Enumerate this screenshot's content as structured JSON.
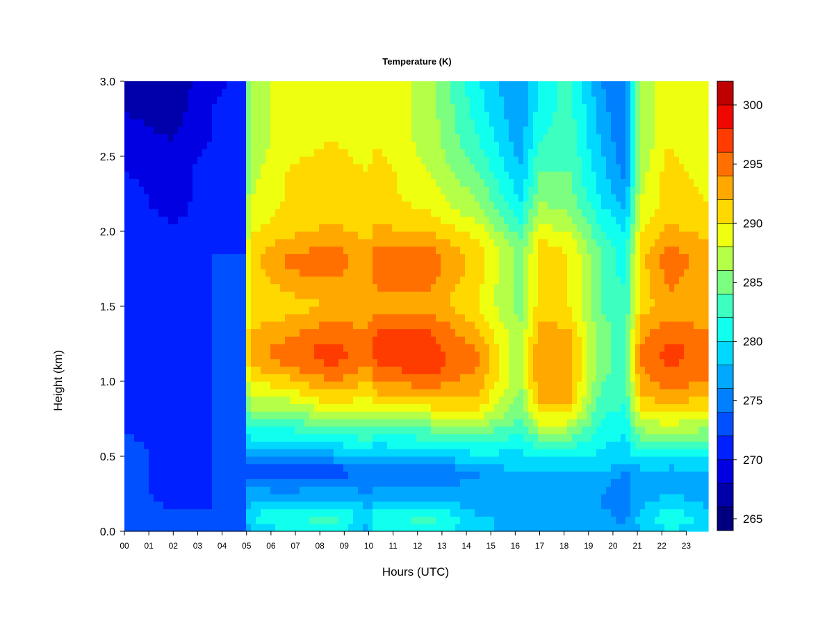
{
  "chart_data": {
    "type": "heatmap",
    "title": "Temperature (K)",
    "xlabel": "Hours (UTC)",
    "ylabel": "Height (km)",
    "x_tick_labels": [
      "00",
      "01",
      "02",
      "03",
      "04",
      "05",
      "06",
      "07",
      "08",
      "09",
      "10",
      "11",
      "12",
      "13",
      "14",
      "15",
      "16",
      "17",
      "18",
      "19",
      "20",
      "21",
      "22",
      "23"
    ],
    "x_range": [
      0,
      23.9
    ],
    "y_tick_labels": [
      "0.0",
      "0.5",
      "1.0",
      "1.5",
      "2.0",
      "2.5",
      "3.0"
    ],
    "y_range": [
      0,
      3.0
    ],
    "colorbar": {
      "range": [
        264,
        302
      ],
      "levels": [
        264,
        266,
        268,
        270,
        272,
        274,
        276,
        278,
        280,
        282,
        284,
        286,
        288,
        290,
        292,
        294,
        296,
        298,
        300,
        302
      ],
      "colors": [
        "#00007F",
        "#0000AA",
        "#0000E3",
        "#0020FF",
        "#0050FF",
        "#0080FF",
        "#00A8FF",
        "#00D8FF",
        "#10FFEE",
        "#3CFFC0",
        "#7CFF80",
        "#B4FF48",
        "#EEFF10",
        "#FFD800",
        "#FFA800",
        "#FF7000",
        "#FF3C00",
        "#F00800",
        "#BE0000",
        "#7F0000"
      ],
      "tick_labels": [
        "265",
        "270",
        "275",
        "280",
        "285",
        "290",
        "295",
        "300"
      ]
    },
    "height_levels_km": [
      0.0,
      0.05,
      0.1,
      0.15,
      0.25,
      0.35,
      0.4,
      0.45,
      0.55,
      0.65,
      0.75,
      0.85,
      1.0,
      1.1,
      1.2,
      1.35,
      1.5,
      1.6,
      1.75,
      1.85,
      1.95,
      2.05,
      2.2,
      2.4,
      2.6,
      2.8,
      3.0
    ],
    "profiles": [
      {
        "hour": 0.0,
        "temp_k": [
          274,
          274,
          274,
          273,
          273,
          273,
          273,
          273,
          273,
          272,
          272,
          272,
          272,
          272,
          272,
          272,
          272,
          272,
          271,
          271,
          271,
          271,
          271,
          270,
          269,
          268,
          268
        ]
      },
      {
        "hour": 2.0,
        "temp_k": [
          273,
          273,
          272,
          272,
          271,
          271,
          271,
          271,
          271,
          271,
          271,
          271,
          271,
          271,
          271,
          271,
          271,
          271,
          271,
          270,
          270,
          270,
          269,
          269,
          268,
          267,
          267
        ]
      },
      {
        "hour": 3.5,
        "temp_k": [
          273,
          273,
          272,
          272,
          272,
          272,
          272,
          272,
          272,
          272,
          272,
          272,
          272,
          272,
          272,
          272,
          272,
          272,
          272,
          272,
          271,
          271,
          271,
          271,
          270,
          270,
          269
        ]
      },
      {
        "hour": 4.9,
        "temp_k": [
          273,
          273,
          272,
          272,
          272,
          272,
          272,
          272,
          272,
          272,
          272,
          272,
          272,
          272,
          272,
          272,
          272,
          272,
          272,
          272,
          272,
          272,
          272,
          271,
          271,
          271,
          271
        ]
      },
      {
        "hour": 5.1,
        "temp_k": [
          278,
          279,
          280,
          279,
          277,
          275,
          273,
          275,
          279,
          281,
          284,
          287,
          290,
          292,
          293,
          292,
          290,
          290,
          291,
          291,
          290,
          289,
          288,
          287,
          286,
          286,
          286
        ]
      },
      {
        "hour": 6.5,
        "temp_k": [
          280,
          281,
          282,
          280,
          276,
          275,
          272,
          275,
          278,
          281,
          284,
          287,
          291,
          294,
          295,
          293,
          291,
          292,
          294,
          294,
          292,
          291,
          290,
          290,
          289,
          289,
          289
        ]
      },
      {
        "hour": 8.5,
        "temp_k": [
          281,
          282,
          283,
          281,
          277,
          275,
          272,
          275,
          279,
          282,
          286,
          290,
          294,
          296,
          297,
          295,
          292,
          293,
          295,
          295,
          293,
          292,
          291,
          291,
          290,
          290,
          290
        ]
      },
      {
        "hour": 10.0,
        "temp_k": [
          277,
          278,
          279,
          278,
          276,
          275,
          274,
          277,
          280,
          283,
          286,
          289,
          292,
          294,
          295,
          294,
          292,
          292,
          293,
          293,
          292,
          291,
          290,
          290,
          289,
          289,
          289
        ]
      },
      {
        "hour": 10.3,
        "temp_k": [
          281,
          281,
          281,
          280,
          277,
          275,
          273,
          275,
          279,
          282,
          286,
          290,
          294,
          296,
          297,
          296,
          293,
          294,
          295,
          295,
          293,
          292,
          291,
          291,
          290,
          290,
          290
        ]
      },
      {
        "hour": 12.5,
        "temp_k": [
          281,
          282,
          283,
          281,
          277,
          275,
          274,
          276,
          280,
          283,
          287,
          291,
          295,
          297,
          297,
          296,
          293,
          294,
          295,
          295,
          293,
          291,
          289,
          288,
          287,
          287,
          287
        ]
      },
      {
        "hour": 14.5,
        "temp_k": [
          278,
          279,
          278,
          277,
          277,
          276,
          276,
          278,
          281,
          284,
          288,
          291,
          293,
          294,
          294,
          292,
          290,
          290,
          291,
          291,
          290,
          288,
          286,
          284,
          282,
          281,
          280
        ]
      },
      {
        "hour": 16.2,
        "temp_k": [
          277,
          277,
          277,
          277,
          277,
          277,
          278,
          279,
          280,
          282,
          284,
          285,
          286,
          286,
          286,
          286,
          285,
          285,
          285,
          285,
          284,
          282,
          280,
          278,
          277,
          276,
          276
        ]
      },
      {
        "hour": 17.0,
        "temp_k": [
          277,
          278,
          278,
          277,
          277,
          277,
          278,
          279,
          282,
          285,
          289,
          292,
          294,
          294,
          294,
          293,
          291,
          291,
          291,
          291,
          290,
          288,
          286,
          284,
          282,
          281,
          280
        ]
      },
      {
        "hour": 18.2,
        "temp_k": [
          277,
          278,
          277,
          276,
          276,
          277,
          277,
          279,
          282,
          285,
          289,
          292,
          293,
          293,
          293,
          292,
          290,
          290,
          290,
          290,
          289,
          287,
          285,
          284,
          283,
          283,
          283
        ]
      },
      {
        "hour": 19.5,
        "temp_k": [
          277,
          277,
          277,
          276,
          276,
          277,
          278,
          279,
          280,
          281,
          282,
          283,
          284,
          285,
          285,
          285,
          284,
          284,
          284,
          284,
          283,
          282,
          280,
          279,
          278,
          277,
          276
        ]
      },
      {
        "hour": 20.5,
        "temp_k": [
          276,
          276,
          275,
          275,
          275,
          275,
          276,
          278,
          279,
          280,
          281,
          282,
          283,
          283,
          283,
          283,
          282,
          282,
          281,
          281,
          280,
          279,
          277,
          275,
          274,
          274,
          274
        ]
      },
      {
        "hour": 21.1,
        "temp_k": [
          278,
          278,
          279,
          278,
          277,
          277,
          277,
          279,
          282,
          285,
          288,
          291,
          293,
          294,
          294,
          293,
          291,
          291,
          291,
          291,
          290,
          289,
          288,
          287,
          286,
          286,
          286
        ]
      },
      {
        "hour": 22.3,
        "temp_k": [
          280,
          281,
          282,
          280,
          278,
          277,
          277,
          279,
          283,
          286,
          289,
          292,
          295,
          296,
          297,
          295,
          293,
          294,
          295,
          295,
          293,
          292,
          291,
          291,
          290,
          290,
          290
        ]
      },
      {
        "hour": 23.9,
        "temp_k": [
          278,
          279,
          279,
          278,
          277,
          277,
          277,
          279,
          282,
          285,
          288,
          291,
          294,
          295,
          295,
          294,
          292,
          292,
          293,
          293,
          292,
          291,
          290,
          289,
          288,
          288,
          288
        ]
      }
    ]
  }
}
